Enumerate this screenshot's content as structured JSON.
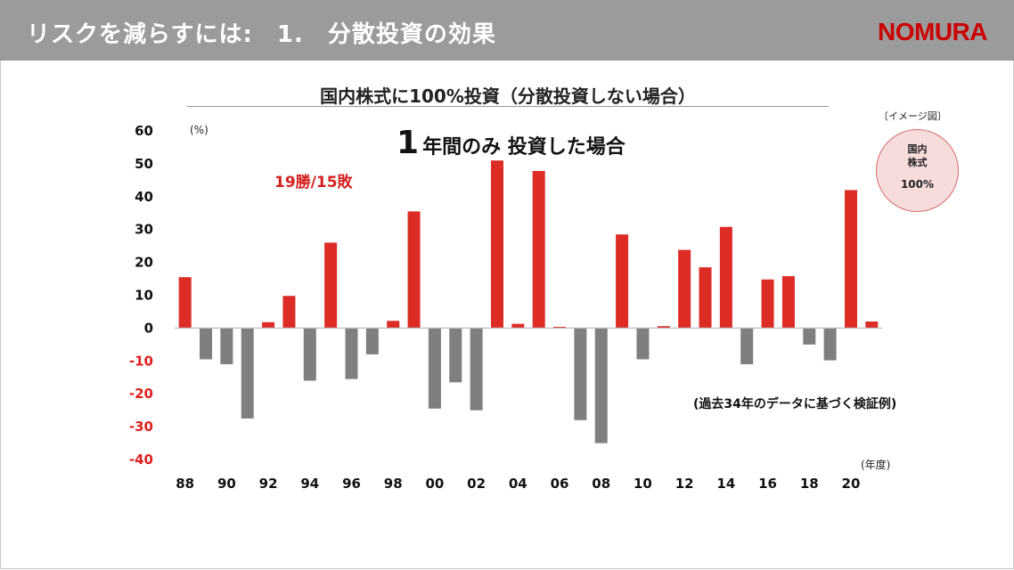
{
  "header": {
    "title": "リスクを減らすには:　1.　分散投資の効果",
    "logo": "NOMURA"
  },
  "chart_title": "国内株式に100%投資（分散投資しない場合）",
  "subtitle": {
    "big": "1",
    "rest": "年間のみ 投資した場合"
  },
  "record": "19勝/15敗",
  "note": "(過去34年のデータに基づく検証例)",
  "image_label": "〔イメージ図〕",
  "pie": {
    "line1": "国内",
    "line2": "株式",
    "percent": "100%"
  },
  "colors": {
    "positive": "#dd2b25",
    "negative": "#7f7f7f",
    "negative_tick": "#e02020",
    "header": "#9b9b9b",
    "logo": "#cc0000"
  },
  "chart_data": {
    "type": "bar",
    "y_unit_label": "(%)",
    "x_unit_label": "(年度)",
    "ylim": [
      -40,
      60
    ],
    "yticks": [
      60,
      50,
      40,
      30,
      20,
      10,
      0,
      -10,
      -20,
      -30,
      -40
    ],
    "x_tick_labels": [
      "88",
      "90",
      "92",
      "94",
      "96",
      "98",
      "00",
      "02",
      "04",
      "06",
      "08",
      "10",
      "12",
      "14",
      "16",
      "18",
      "20"
    ],
    "categories": [
      "88",
      "89",
      "90",
      "91",
      "92",
      "93",
      "94",
      "95",
      "96",
      "97",
      "98",
      "99",
      "00",
      "01",
      "02",
      "03",
      "04",
      "05",
      "06",
      "07",
      "08",
      "09",
      "10",
      "11",
      "12",
      "13",
      "14",
      "15",
      "16",
      "17",
      "18",
      "19",
      "20",
      "21"
    ],
    "values": [
      15.5,
      -9.5,
      -11,
      -27.5,
      1.8,
      9.8,
      -16,
      26,
      -15.5,
      -8,
      2.2,
      35.5,
      -24.5,
      -16.5,
      -25,
      51,
      1.3,
      47.8,
      0.4,
      -28,
      -35,
      28.5,
      -9.5,
      0.6,
      23.8,
      18.5,
      30.8,
      -11,
      14.8,
      15.8,
      -5,
      -9.8,
      42,
      2
    ],
    "grid": false
  }
}
